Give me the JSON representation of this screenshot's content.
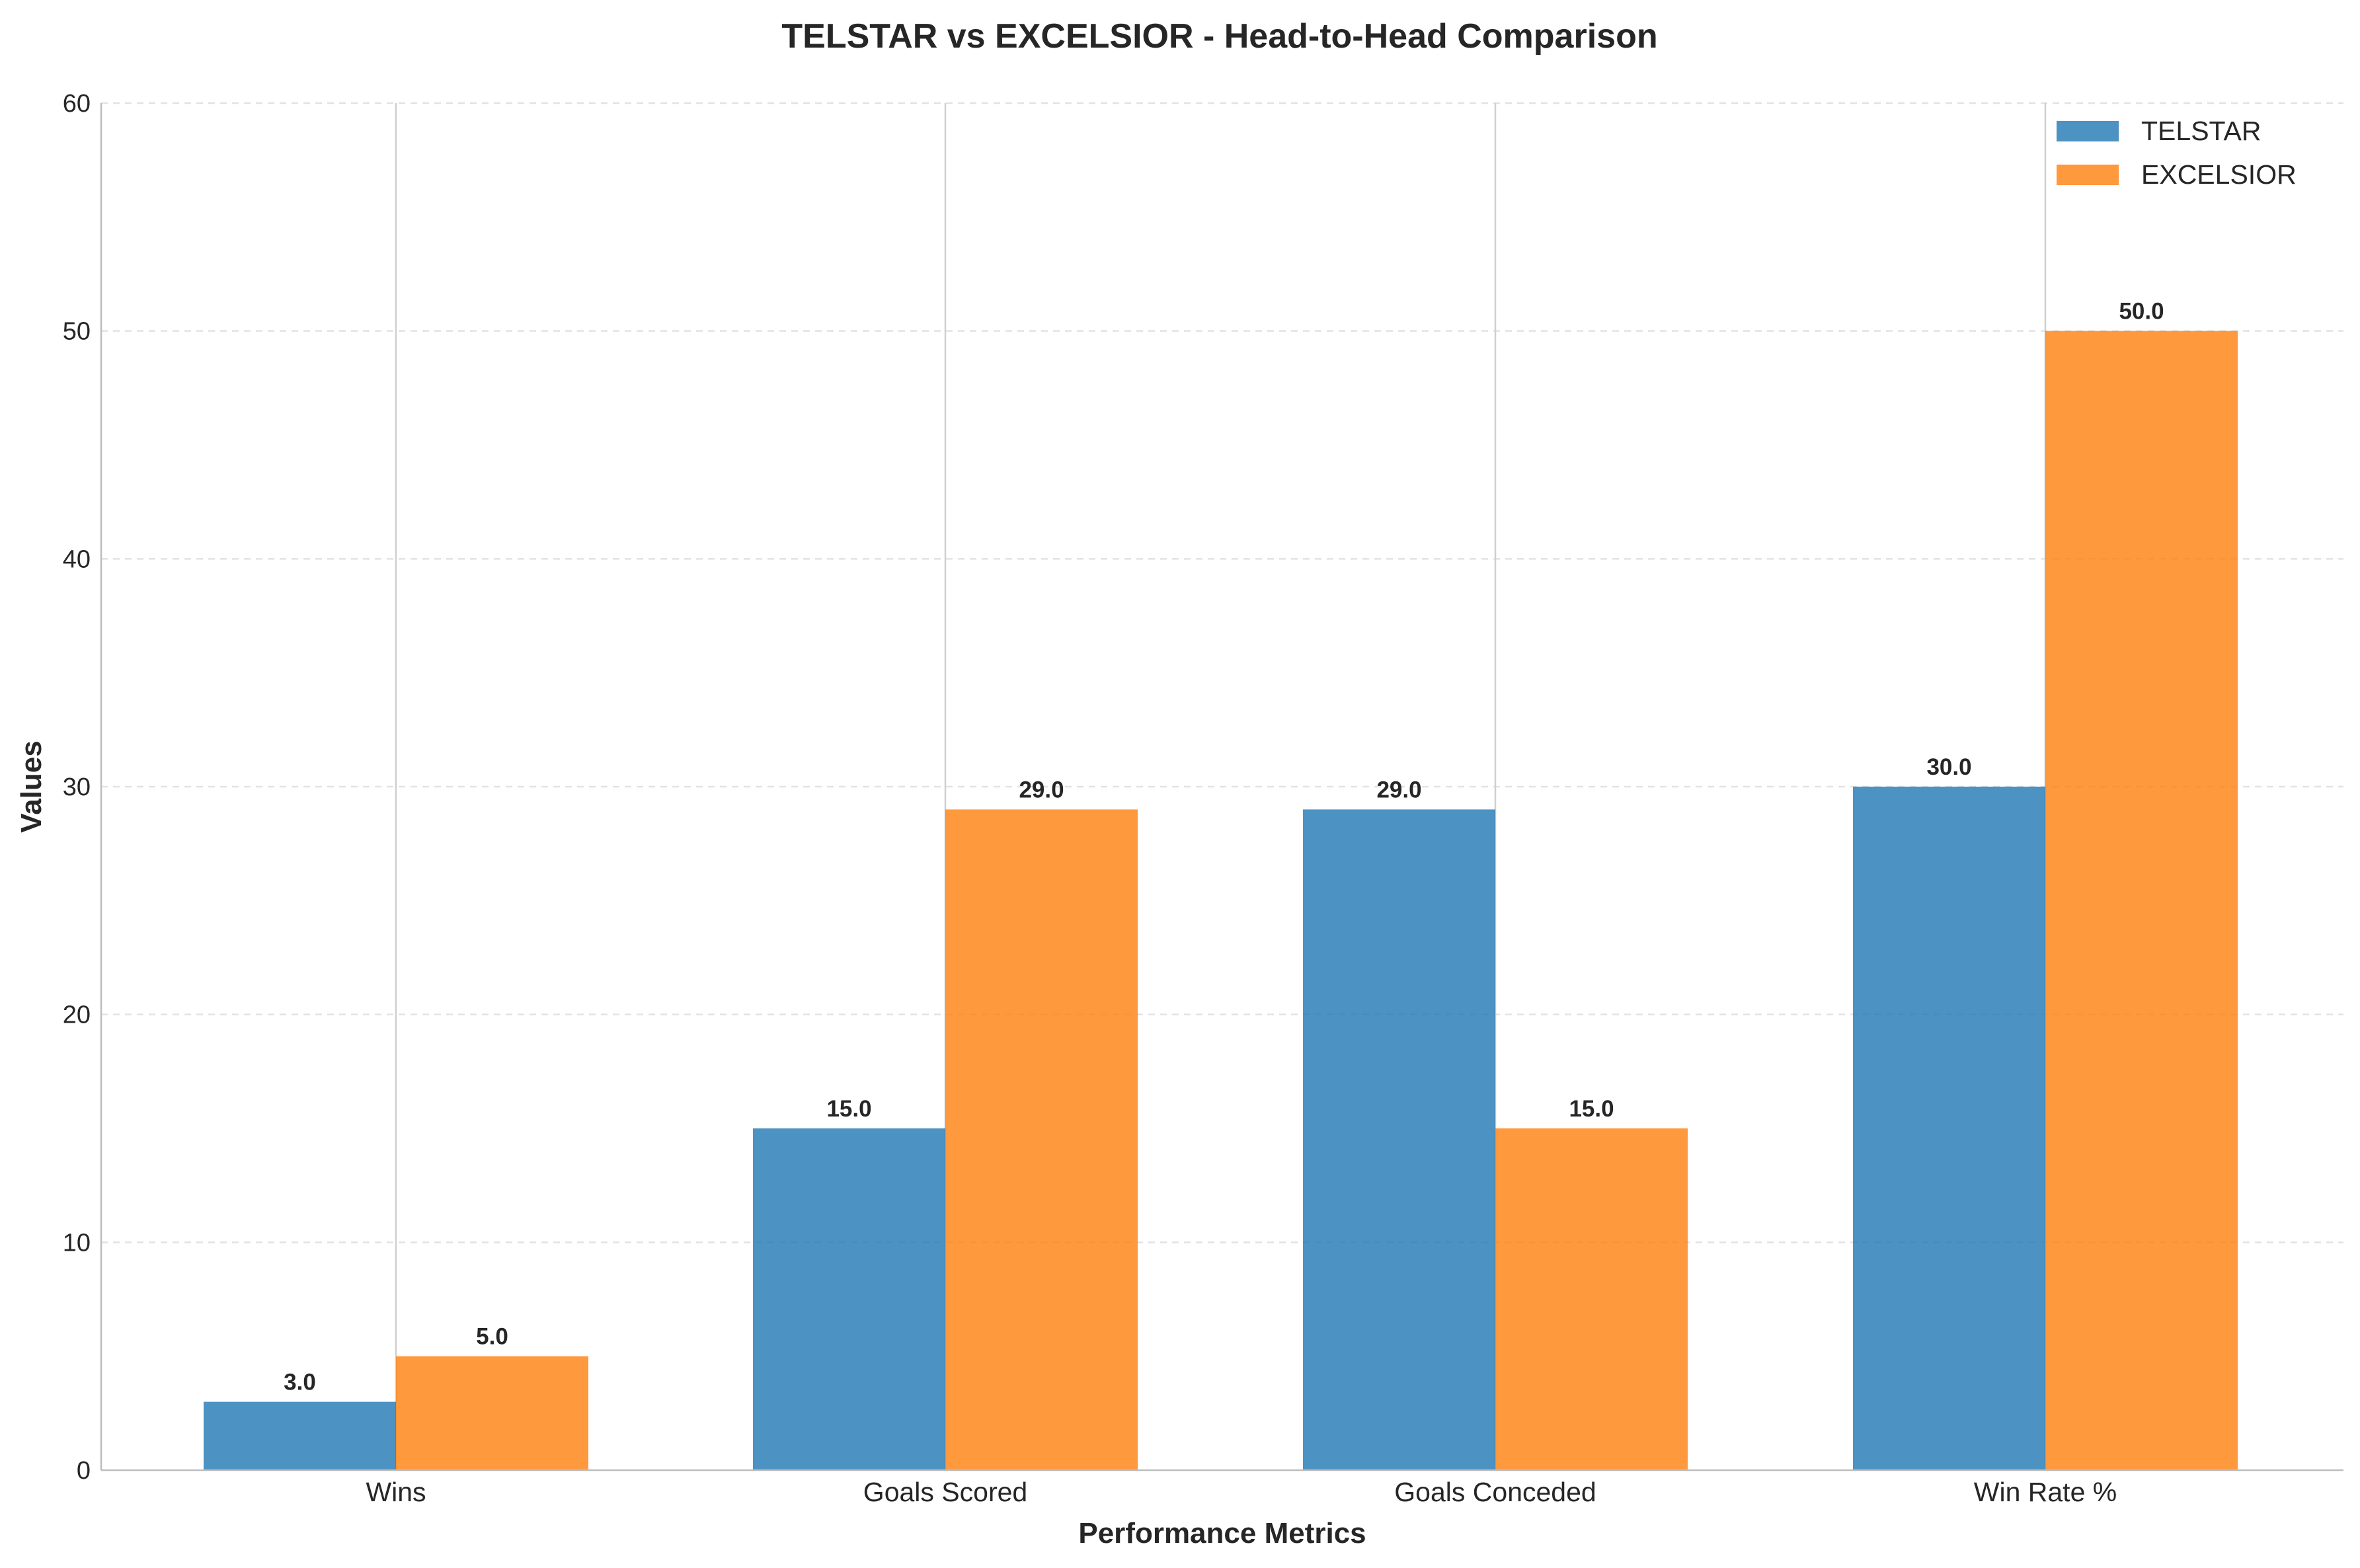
{
  "chart_data": {
    "type": "bar",
    "title": "TELSTAR vs EXCELSIOR - Head-to-Head Comparison",
    "xlabel": "Performance Metrics",
    "ylabel": "Values",
    "categories": [
      "Wins",
      "Goals Scored",
      "Goals Conceded",
      "Win Rate %"
    ],
    "series": [
      {
        "name": "TELSTAR",
        "values": [
          3.0,
          15.0,
          29.0,
          30.0
        ],
        "color": "#1f77b4"
      },
      {
        "name": "EXCELSIOR",
        "values": [
          5.0,
          29.0,
          15.0,
          50.0
        ],
        "color": "#ff7f0e"
      }
    ],
    "ylim": [
      0,
      60
    ],
    "yticks": [
      0,
      10,
      20,
      30,
      40,
      50,
      60
    ],
    "grid": true,
    "legend_position": "top-right",
    "value_label_format": "one decimal"
  }
}
